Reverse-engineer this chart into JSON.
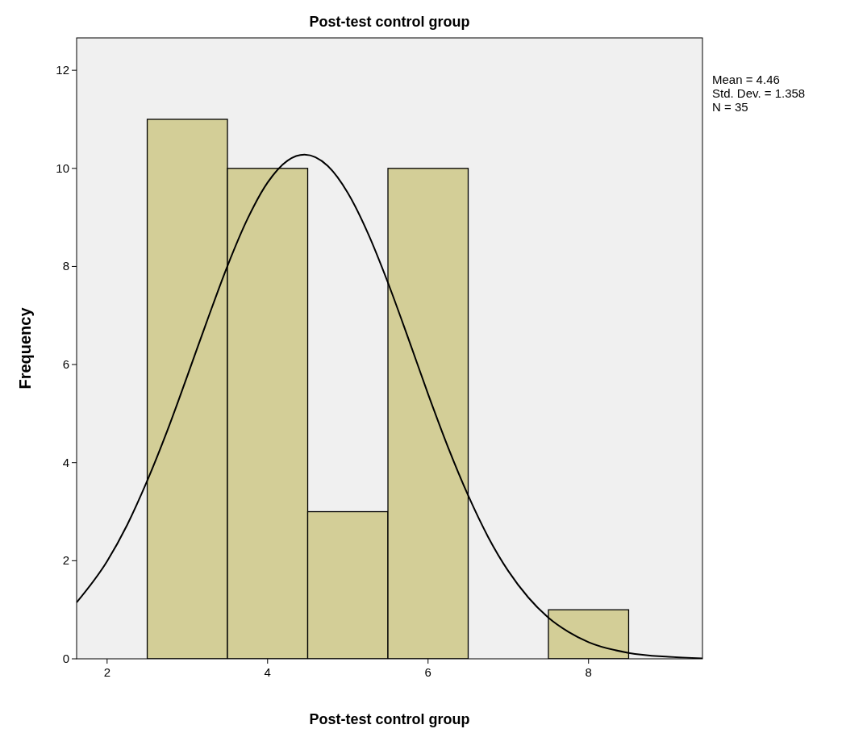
{
  "chart_data": {
    "type": "histogram",
    "title": "Post-test control group",
    "xlabel": "Post-test control group",
    "ylabel": "Frequency",
    "series": [
      {
        "color": "#d3ce97",
        "bins": [
          2.5,
          3.5,
          4.5,
          5.5,
          6.5,
          7.5,
          8.5
        ],
        "values": [
          11,
          10,
          3,
          10,
          0,
          1
        ]
      },
      {
        "type": "line",
        "color": "#000000",
        "x": [
          1.62,
          2,
          2.25,
          2.5,
          2.75,
          3,
          3.25,
          3.5,
          3.75,
          4,
          4.25,
          4.46,
          4.75,
          5,
          5.25,
          5.5,
          5.75,
          6,
          6.25,
          6.5,
          6.75,
          7,
          7.25,
          7.5,
          7.75,
          8,
          8.5,
          9,
          9.42
        ],
        "values": [
          1.15,
          1.99,
          2.73,
          3.63,
          4.65,
          5.77,
          6.91,
          8.01,
          8.97,
          9.71,
          10.16,
          10.28,
          10.05,
          9.5,
          8.68,
          7.67,
          6.55,
          5.4,
          4.31,
          3.33,
          2.48,
          1.79,
          1.25,
          0.84,
          0.55,
          0.34,
          0.12,
          0.04,
          0.01
        ]
      }
    ],
    "xlim": [
      1.62,
      9.42
    ],
    "xticks": [
      2,
      4,
      6,
      8
    ],
    "ylim": [
      0,
      12.66
    ],
    "yticks": [
      0,
      2,
      4,
      6,
      8,
      10,
      12
    ],
    "annotations": [
      "Mean = 4.46",
      "Std. Dev. = 1.358",
      "N = 35"
    ]
  }
}
